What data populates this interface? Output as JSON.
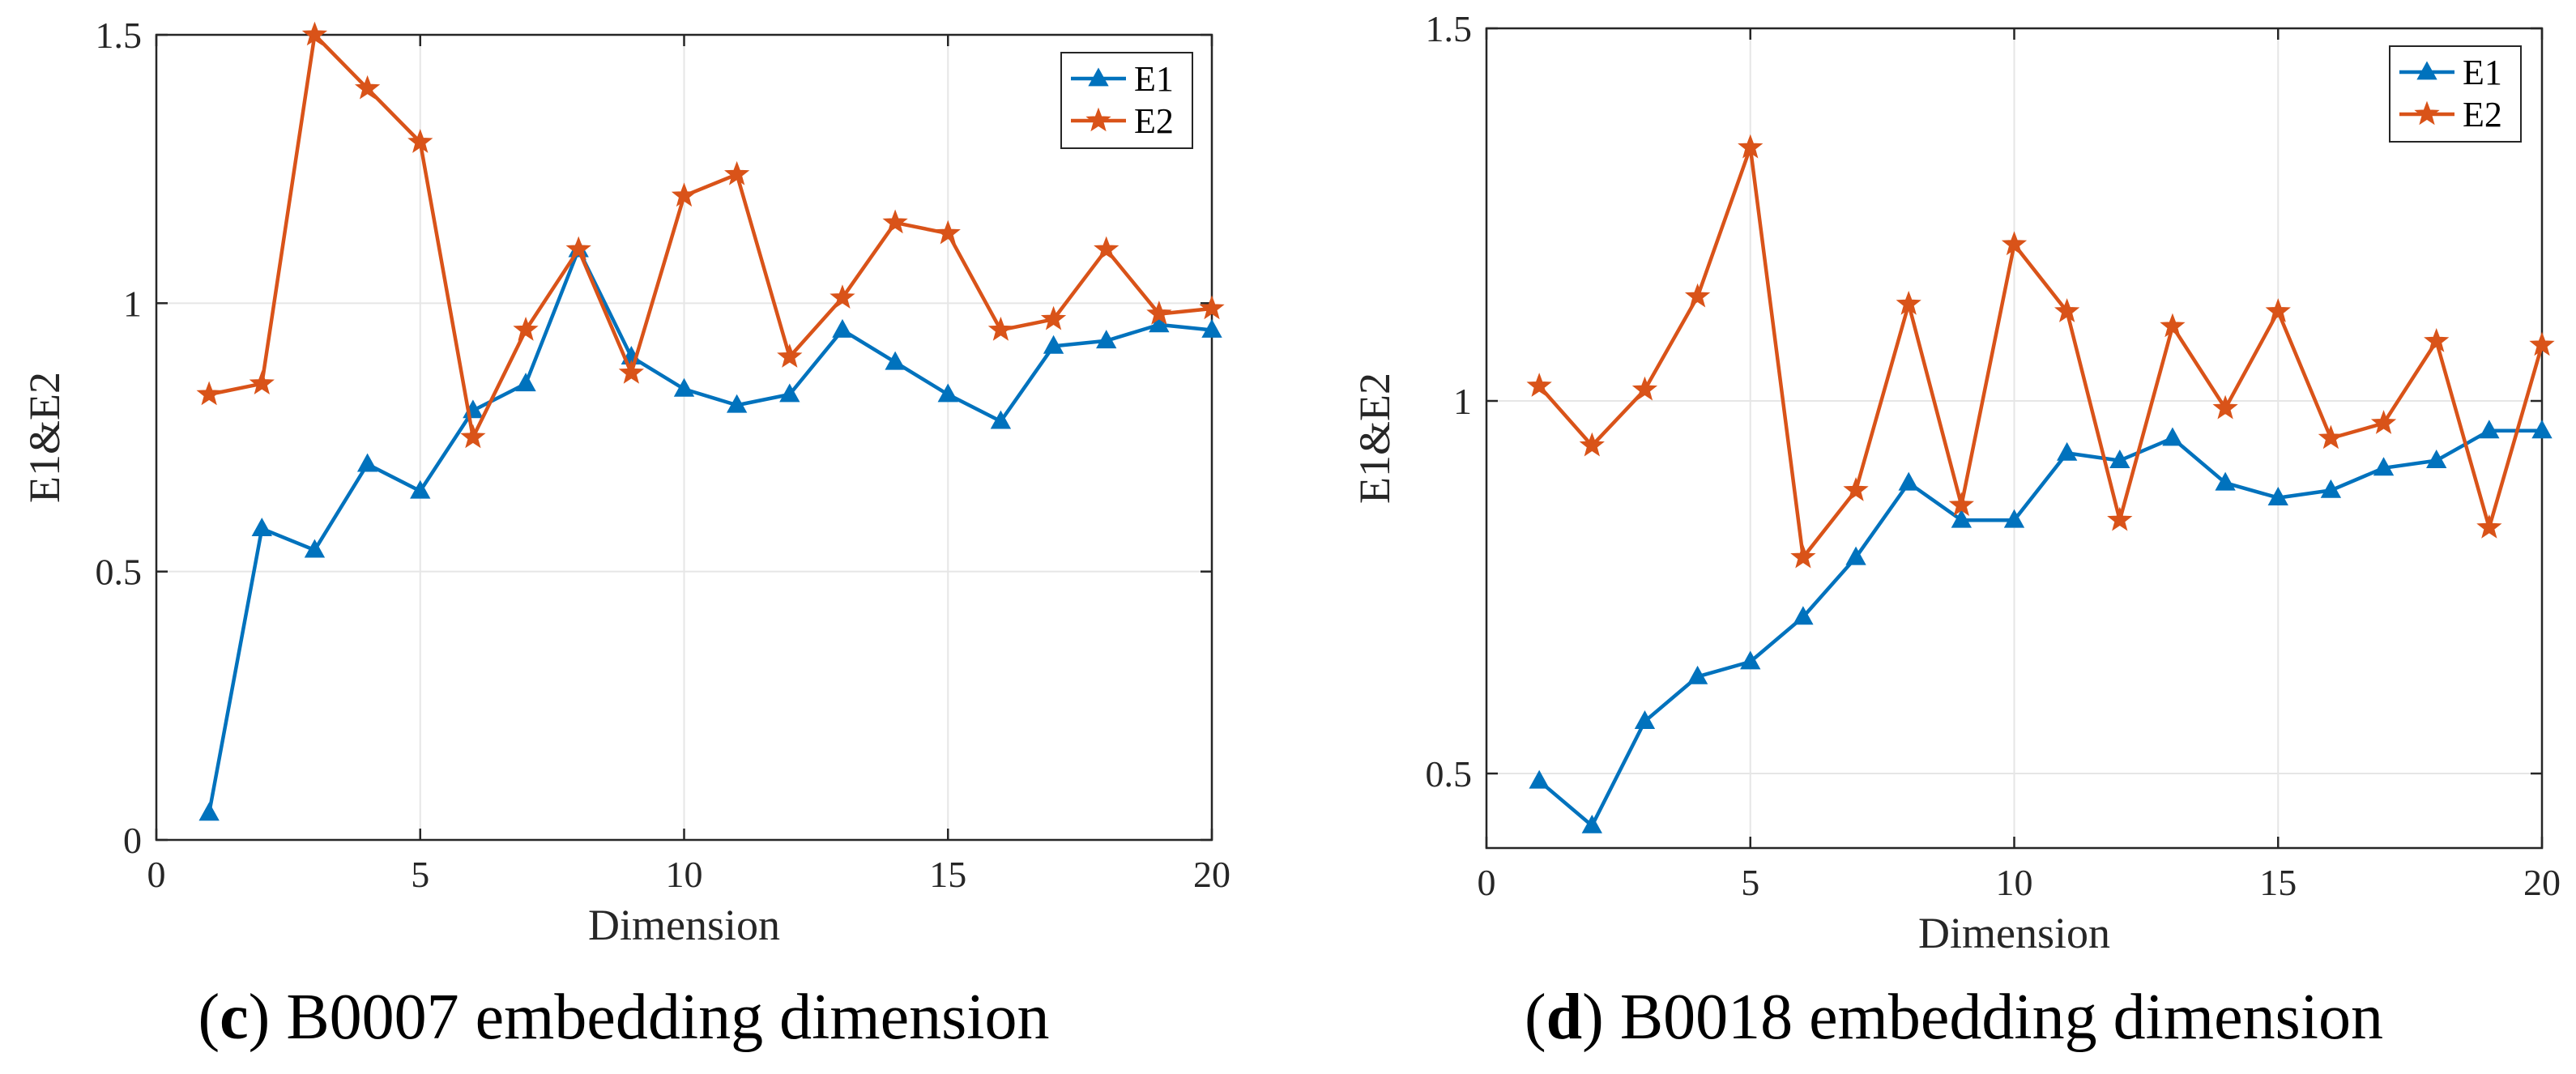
{
  "chart_data": [
    {
      "type": "line",
      "panel_letter": "c",
      "caption": " B0007 embedding dimension",
      "xlabel": "Dimension",
      "ylabel": "E1&E2",
      "xlim": [
        0,
        20
      ],
      "ylim": [
        0,
        1.5
      ],
      "xticks": [
        0,
        5,
        10,
        15,
        20
      ],
      "yticks": [
        0,
        0.5,
        1,
        1.5
      ],
      "xtick_labels": [
        "0",
        "5",
        "10",
        "15",
        "20"
      ],
      "ytick_labels": [
        "0",
        "0.5",
        "1",
        "1.5"
      ],
      "grid": true,
      "legend_position": "top-right",
      "x": [
        1,
        2,
        3,
        4,
        5,
        6,
        7,
        8,
        9,
        10,
        11,
        12,
        13,
        14,
        15,
        16,
        17,
        18,
        19,
        20
      ],
      "series": [
        {
          "name": "E1",
          "color": "#0072BD",
          "marker": "triangle",
          "values": [
            0.05,
            0.58,
            0.54,
            0.7,
            0.65,
            0.8,
            0.85,
            1.1,
            0.9,
            0.84,
            0.81,
            0.83,
            0.95,
            0.89,
            0.83,
            0.78,
            0.92,
            0.93,
            0.96,
            0.95
          ]
        },
        {
          "name": "E2",
          "color": "#D95319",
          "marker": "star",
          "values": [
            0.83,
            0.85,
            1.5,
            1.4,
            1.3,
            0.75,
            0.95,
            1.1,
            0.87,
            1.2,
            1.24,
            0.9,
            1.01,
            1.15,
            1.13,
            0.95,
            0.97,
            1.1,
            0.98,
            0.99
          ]
        }
      ]
    },
    {
      "type": "line",
      "panel_letter": "d",
      "caption": " B0018 embedding dimension",
      "xlabel": "Dimension",
      "ylabel": "E1&E2",
      "xlim": [
        0,
        20
      ],
      "ylim": [
        0.4,
        1.5
      ],
      "xticks": [
        0,
        5,
        10,
        15,
        20
      ],
      "yticks": [
        0.5,
        1,
        1.5
      ],
      "xtick_labels": [
        "0",
        "5",
        "10",
        "15",
        "20"
      ],
      "ytick_labels": [
        "0.5",
        "1",
        "1.5"
      ],
      "grid": true,
      "legend_position": "top-right",
      "x": [
        1,
        2,
        3,
        4,
        5,
        6,
        7,
        8,
        9,
        10,
        11,
        12,
        13,
        14,
        15,
        16,
        17,
        18,
        19,
        20
      ],
      "series": [
        {
          "name": "E1",
          "color": "#0072BD",
          "marker": "triangle",
          "values": [
            0.49,
            0.43,
            0.57,
            0.63,
            0.65,
            0.71,
            0.79,
            0.89,
            0.84,
            0.84,
            0.93,
            0.92,
            0.95,
            0.89,
            0.87,
            0.88,
            0.91,
            0.92,
            0.96,
            0.96
          ]
        },
        {
          "name": "E2",
          "color": "#D95319",
          "marker": "star",
          "values": [
            1.02,
            0.94,
            1.015,
            1.14,
            1.34,
            0.79,
            0.88,
            1.13,
            0.86,
            1.21,
            1.12,
            0.84,
            1.1,
            0.99,
            1.12,
            0.95,
            0.97,
            1.08,
            0.83,
            1.075
          ]
        }
      ]
    }
  ]
}
